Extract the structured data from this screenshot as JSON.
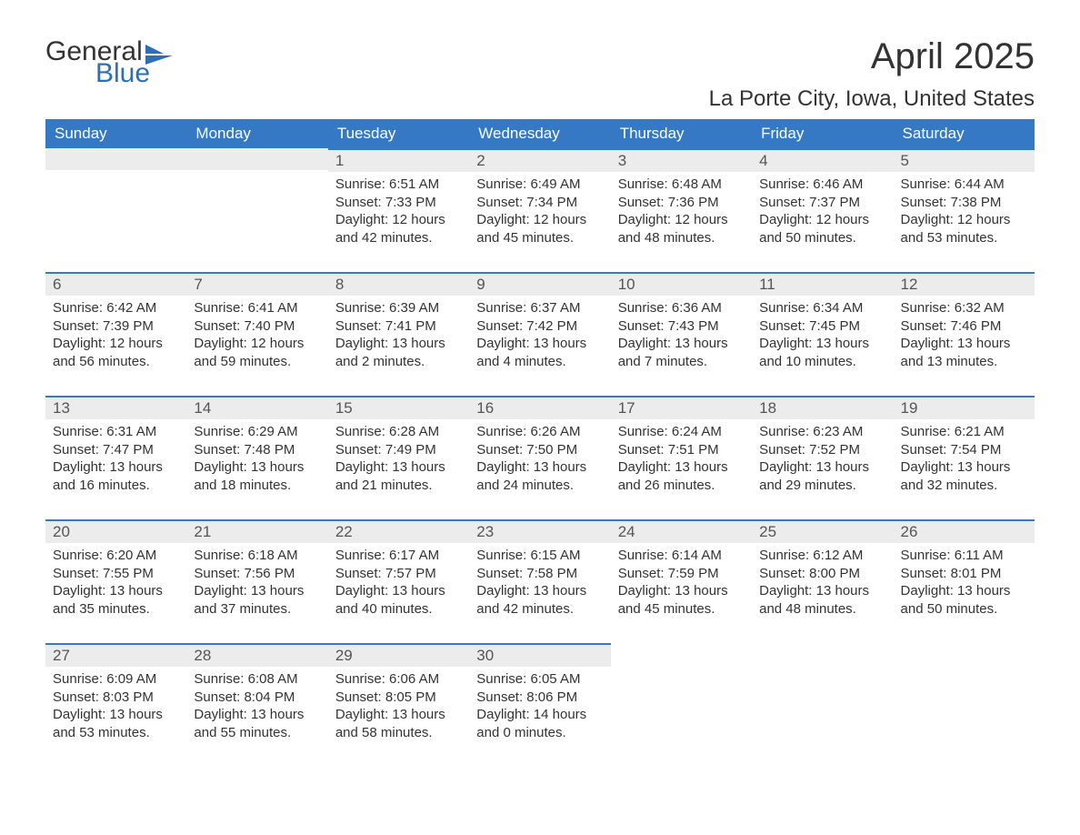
{
  "logo": {
    "word1": "General",
    "word2": "Blue",
    "icon_color": "#2d6fb3"
  },
  "title": "April 2025",
  "location": "La Porte City, Iowa, United States",
  "theme": {
    "header_bg": "#3578c3",
    "header_text": "#ffffff",
    "band_bg": "#ececec",
    "band_border": "#3578c3",
    "body_text": "#333333",
    "page_bg": "#ffffff"
  },
  "weekdays": [
    "Sunday",
    "Monday",
    "Tuesday",
    "Wednesday",
    "Thursday",
    "Friday",
    "Saturday"
  ],
  "weeks": [
    [
      {
        "day": "",
        "sunrise": "",
        "sunset": "",
        "daylight": ""
      },
      {
        "day": "",
        "sunrise": "",
        "sunset": "",
        "daylight": ""
      },
      {
        "day": "1",
        "sunrise": "Sunrise: 6:51 AM",
        "sunset": "Sunset: 7:33 PM",
        "daylight": "Daylight: 12 hours and 42 minutes."
      },
      {
        "day": "2",
        "sunrise": "Sunrise: 6:49 AM",
        "sunset": "Sunset: 7:34 PM",
        "daylight": "Daylight: 12 hours and 45 minutes."
      },
      {
        "day": "3",
        "sunrise": "Sunrise: 6:48 AM",
        "sunset": "Sunset: 7:36 PM",
        "daylight": "Daylight: 12 hours and 48 minutes."
      },
      {
        "day": "4",
        "sunrise": "Sunrise: 6:46 AM",
        "sunset": "Sunset: 7:37 PM",
        "daylight": "Daylight: 12 hours and 50 minutes."
      },
      {
        "day": "5",
        "sunrise": "Sunrise: 6:44 AM",
        "sunset": "Sunset: 7:38 PM",
        "daylight": "Daylight: 12 hours and 53 minutes."
      }
    ],
    [
      {
        "day": "6",
        "sunrise": "Sunrise: 6:42 AM",
        "sunset": "Sunset: 7:39 PM",
        "daylight": "Daylight: 12 hours and 56 minutes."
      },
      {
        "day": "7",
        "sunrise": "Sunrise: 6:41 AM",
        "sunset": "Sunset: 7:40 PM",
        "daylight": "Daylight: 12 hours and 59 minutes."
      },
      {
        "day": "8",
        "sunrise": "Sunrise: 6:39 AM",
        "sunset": "Sunset: 7:41 PM",
        "daylight": "Daylight: 13 hours and 2 minutes."
      },
      {
        "day": "9",
        "sunrise": "Sunrise: 6:37 AM",
        "sunset": "Sunset: 7:42 PM",
        "daylight": "Daylight: 13 hours and 4 minutes."
      },
      {
        "day": "10",
        "sunrise": "Sunrise: 6:36 AM",
        "sunset": "Sunset: 7:43 PM",
        "daylight": "Daylight: 13 hours and 7 minutes."
      },
      {
        "day": "11",
        "sunrise": "Sunrise: 6:34 AM",
        "sunset": "Sunset: 7:45 PM",
        "daylight": "Daylight: 13 hours and 10 minutes."
      },
      {
        "day": "12",
        "sunrise": "Sunrise: 6:32 AM",
        "sunset": "Sunset: 7:46 PM",
        "daylight": "Daylight: 13 hours and 13 minutes."
      }
    ],
    [
      {
        "day": "13",
        "sunrise": "Sunrise: 6:31 AM",
        "sunset": "Sunset: 7:47 PM",
        "daylight": "Daylight: 13 hours and 16 minutes."
      },
      {
        "day": "14",
        "sunrise": "Sunrise: 6:29 AM",
        "sunset": "Sunset: 7:48 PM",
        "daylight": "Daylight: 13 hours and 18 minutes."
      },
      {
        "day": "15",
        "sunrise": "Sunrise: 6:28 AM",
        "sunset": "Sunset: 7:49 PM",
        "daylight": "Daylight: 13 hours and 21 minutes."
      },
      {
        "day": "16",
        "sunrise": "Sunrise: 6:26 AM",
        "sunset": "Sunset: 7:50 PM",
        "daylight": "Daylight: 13 hours and 24 minutes."
      },
      {
        "day": "17",
        "sunrise": "Sunrise: 6:24 AM",
        "sunset": "Sunset: 7:51 PM",
        "daylight": "Daylight: 13 hours and 26 minutes."
      },
      {
        "day": "18",
        "sunrise": "Sunrise: 6:23 AM",
        "sunset": "Sunset: 7:52 PM",
        "daylight": "Daylight: 13 hours and 29 minutes."
      },
      {
        "day": "19",
        "sunrise": "Sunrise: 6:21 AM",
        "sunset": "Sunset: 7:54 PM",
        "daylight": "Daylight: 13 hours and 32 minutes."
      }
    ],
    [
      {
        "day": "20",
        "sunrise": "Sunrise: 6:20 AM",
        "sunset": "Sunset: 7:55 PM",
        "daylight": "Daylight: 13 hours and 35 minutes."
      },
      {
        "day": "21",
        "sunrise": "Sunrise: 6:18 AM",
        "sunset": "Sunset: 7:56 PM",
        "daylight": "Daylight: 13 hours and 37 minutes."
      },
      {
        "day": "22",
        "sunrise": "Sunrise: 6:17 AM",
        "sunset": "Sunset: 7:57 PM",
        "daylight": "Daylight: 13 hours and 40 minutes."
      },
      {
        "day": "23",
        "sunrise": "Sunrise: 6:15 AM",
        "sunset": "Sunset: 7:58 PM",
        "daylight": "Daylight: 13 hours and 42 minutes."
      },
      {
        "day": "24",
        "sunrise": "Sunrise: 6:14 AM",
        "sunset": "Sunset: 7:59 PM",
        "daylight": "Daylight: 13 hours and 45 minutes."
      },
      {
        "day": "25",
        "sunrise": "Sunrise: 6:12 AM",
        "sunset": "Sunset: 8:00 PM",
        "daylight": "Daylight: 13 hours and 48 minutes."
      },
      {
        "day": "26",
        "sunrise": "Sunrise: 6:11 AM",
        "sunset": "Sunset: 8:01 PM",
        "daylight": "Daylight: 13 hours and 50 minutes."
      }
    ],
    [
      {
        "day": "27",
        "sunrise": "Sunrise: 6:09 AM",
        "sunset": "Sunset: 8:03 PM",
        "daylight": "Daylight: 13 hours and 53 minutes."
      },
      {
        "day": "28",
        "sunrise": "Sunrise: 6:08 AM",
        "sunset": "Sunset: 8:04 PM",
        "daylight": "Daylight: 13 hours and 55 minutes."
      },
      {
        "day": "29",
        "sunrise": "Sunrise: 6:06 AM",
        "sunset": "Sunset: 8:05 PM",
        "daylight": "Daylight: 13 hours and 58 minutes."
      },
      {
        "day": "30",
        "sunrise": "Sunrise: 6:05 AM",
        "sunset": "Sunset: 8:06 PM",
        "daylight": "Daylight: 14 hours and 0 minutes."
      },
      {
        "day": "",
        "sunrise": "",
        "sunset": "",
        "daylight": ""
      },
      {
        "day": "",
        "sunrise": "",
        "sunset": "",
        "daylight": ""
      },
      {
        "day": "",
        "sunrise": "",
        "sunset": "",
        "daylight": ""
      }
    ]
  ]
}
